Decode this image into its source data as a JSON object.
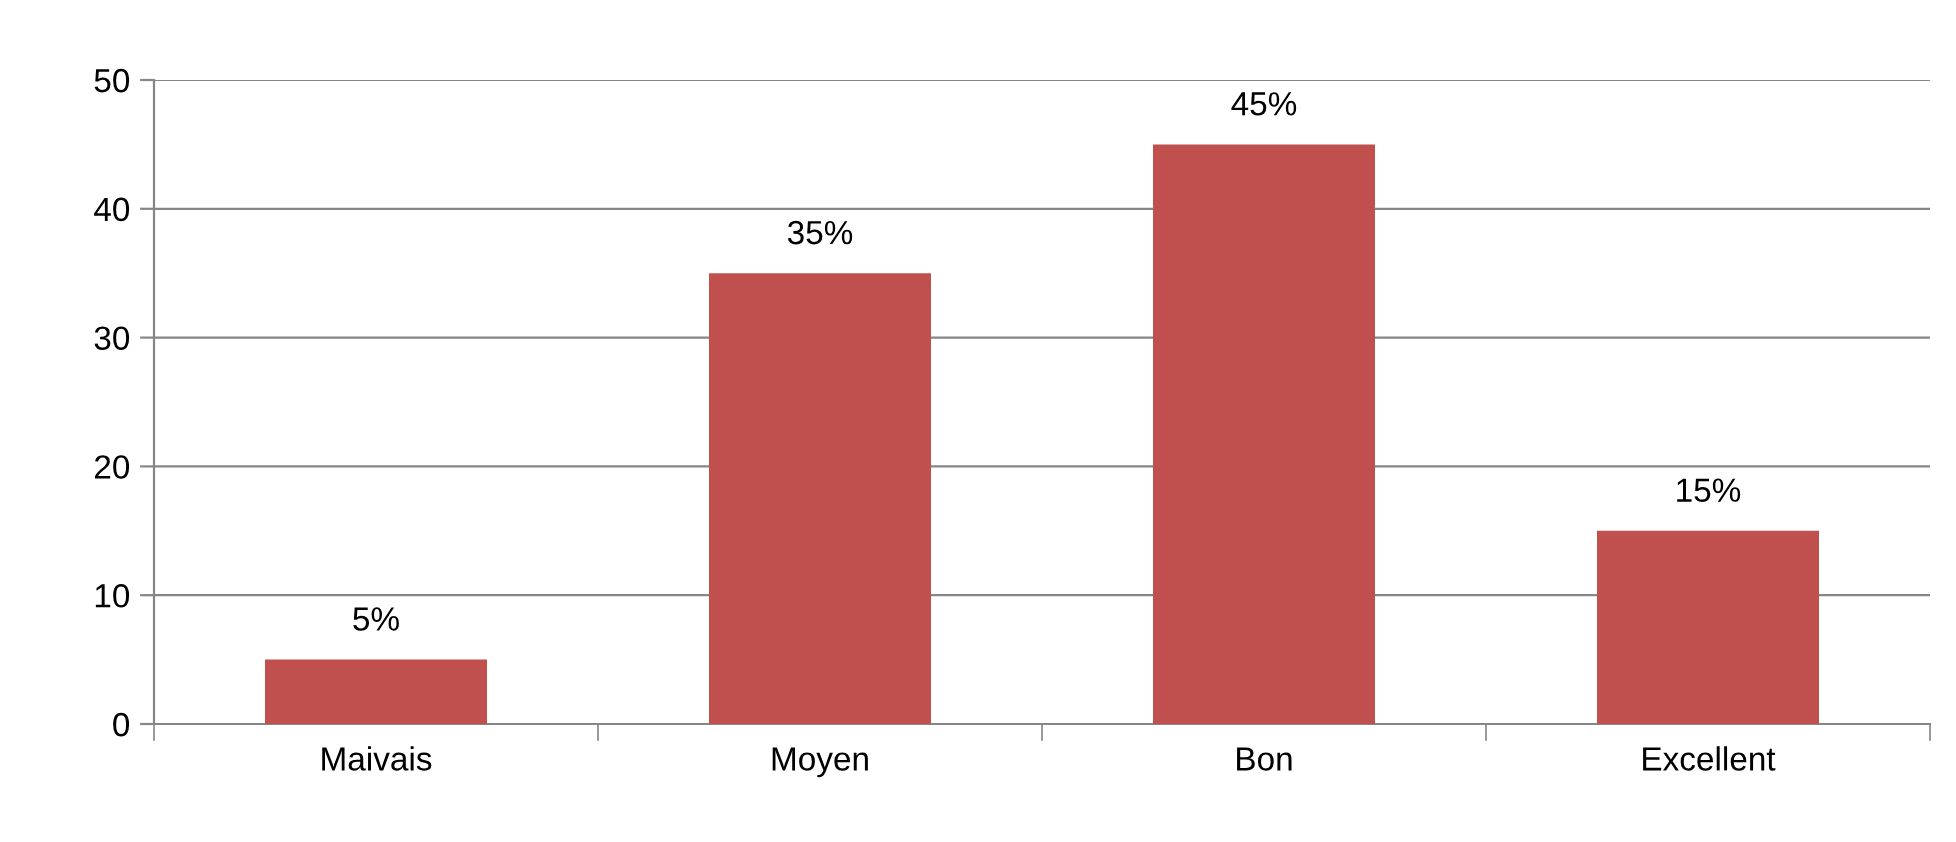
{
  "chart_data": {
    "type": "bar",
    "categories": [
      "Maivais",
      "Moyen",
      "Bon",
      "Excellent"
    ],
    "values": [
      5,
      35,
      45,
      15
    ],
    "value_labels": [
      "5%",
      "35%",
      "45%",
      "15%"
    ],
    "color": "#c0504d",
    "ylim": [
      0,
      50
    ],
    "yticks": [
      0,
      10,
      20,
      30,
      40,
      50
    ],
    "grid": "y",
    "legend": false
  }
}
